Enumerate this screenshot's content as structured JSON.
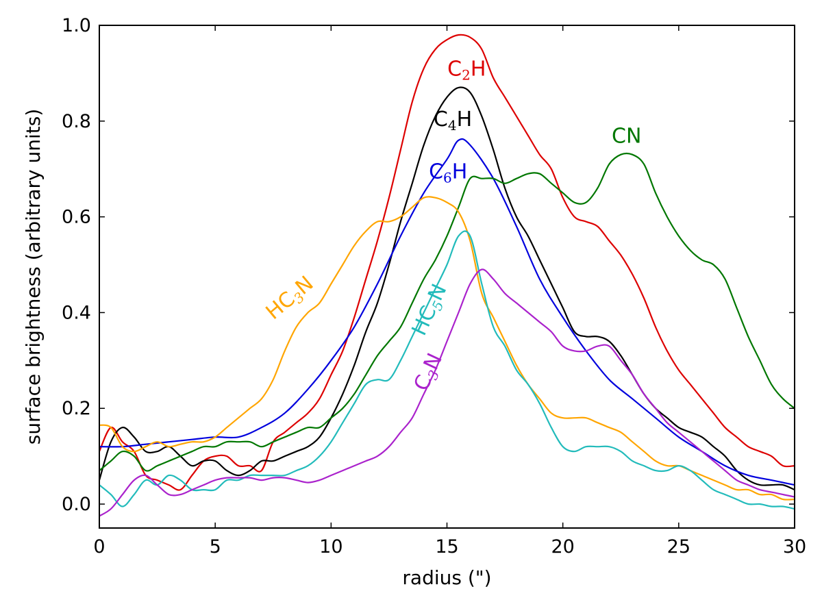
{
  "chart_data": {
    "type": "line",
    "xlabel": "radius (\")",
    "ylabel": "surface brightness (arbitrary units)",
    "xlim": [
      0,
      30
    ],
    "ylim": [
      -0.05,
      1.0
    ],
    "xticks": [
      0,
      5,
      10,
      15,
      20,
      25,
      30
    ],
    "yticks": [
      0.0,
      0.2,
      0.4,
      0.6,
      0.8,
      1.0
    ],
    "xtick_labels": [
      "0",
      "5",
      "10",
      "15",
      "20",
      "25",
      "30"
    ],
    "ytick_labels": [
      "0.0",
      "0.2",
      "0.4",
      "0.6",
      "0.8",
      "1.0"
    ],
    "grid": false,
    "legend": "none",
    "series": [
      {
        "name": "C2H",
        "label_parts": [
          "C",
          "2",
          "H"
        ],
        "color": "#dd0000",
        "x": [
          0,
          0.5,
          1,
          1.5,
          2,
          2.5,
          3,
          3.5,
          4,
          4.5,
          5,
          5.5,
          6,
          6.5,
          7,
          7.5,
          8,
          8.5,
          9,
          9.5,
          10,
          10.5,
          11,
          11.5,
          12,
          12.5,
          13,
          13.5,
          14,
          14.5,
          15,
          15.5,
          16,
          16.5,
          17,
          17.5,
          18,
          18.5,
          19,
          19.5,
          20,
          20.5,
          21,
          21.5,
          22,
          22.5,
          23,
          23.5,
          24,
          24.5,
          25,
          25.5,
          26,
          26.5,
          27,
          27.5,
          28,
          28.5,
          29,
          29.5,
          30
        ],
        "y": [
          0.11,
          0.16,
          0.13,
          0.11,
          0.06,
          0.05,
          0.04,
          0.03,
          0.06,
          0.09,
          0.1,
          0.1,
          0.08,
          0.08,
          0.07,
          0.13,
          0.15,
          0.17,
          0.19,
          0.22,
          0.27,
          0.32,
          0.39,
          0.47,
          0.55,
          0.64,
          0.74,
          0.84,
          0.91,
          0.95,
          0.97,
          0.98,
          0.975,
          0.95,
          0.89,
          0.85,
          0.81,
          0.77,
          0.73,
          0.7,
          0.64,
          0.6,
          0.59,
          0.58,
          0.55,
          0.52,
          0.48,
          0.43,
          0.37,
          0.32,
          0.28,
          0.25,
          0.22,
          0.19,
          0.16,
          0.14,
          0.12,
          0.11,
          0.1,
          0.08,
          0.08
        ]
      },
      {
        "name": "C4H",
        "label_parts": [
          "C",
          "4",
          "H"
        ],
        "color": "#000000",
        "x": [
          0,
          0.5,
          1,
          1.5,
          2,
          2.5,
          3,
          3.5,
          4,
          4.5,
          5,
          5.5,
          6,
          6.5,
          7,
          7.5,
          8,
          8.5,
          9,
          9.5,
          10,
          10.5,
          11,
          11.5,
          12,
          12.5,
          13,
          13.5,
          14,
          14.5,
          15,
          15.5,
          16,
          16.5,
          17,
          17.5,
          18,
          18.5,
          19,
          19.5,
          20,
          20.5,
          21,
          21.5,
          22,
          22.5,
          23,
          23.5,
          24,
          24.5,
          25,
          25.5,
          26,
          26.5,
          27,
          27.5,
          28,
          28.5,
          29,
          29.5,
          30
        ],
        "y": [
          0.05,
          0.13,
          0.16,
          0.14,
          0.11,
          0.11,
          0.12,
          0.1,
          0.08,
          0.09,
          0.09,
          0.07,
          0.06,
          0.07,
          0.09,
          0.09,
          0.1,
          0.11,
          0.12,
          0.14,
          0.18,
          0.23,
          0.29,
          0.36,
          0.42,
          0.5,
          0.59,
          0.67,
          0.75,
          0.81,
          0.85,
          0.87,
          0.86,
          0.81,
          0.74,
          0.66,
          0.6,
          0.56,
          0.51,
          0.46,
          0.41,
          0.36,
          0.35,
          0.35,
          0.34,
          0.31,
          0.27,
          0.23,
          0.2,
          0.18,
          0.16,
          0.15,
          0.14,
          0.12,
          0.1,
          0.07,
          0.05,
          0.04,
          0.04,
          0.04,
          0.03
        ]
      },
      {
        "name": "C6H",
        "label_parts": [
          "C",
          "6",
          "H"
        ],
        "color": "#0000dd",
        "x": [
          0,
          1,
          2,
          3,
          4,
          5,
          6,
          7,
          8,
          9,
          10,
          11,
          12,
          13,
          14,
          15,
          15.5,
          16,
          17,
          18,
          19,
          20,
          21,
          22,
          23,
          24,
          25,
          26,
          27,
          28,
          29,
          30
        ],
        "y": [
          0.12,
          0.12,
          0.125,
          0.13,
          0.135,
          0.14,
          0.14,
          0.16,
          0.19,
          0.24,
          0.3,
          0.37,
          0.46,
          0.56,
          0.65,
          0.72,
          0.76,
          0.75,
          0.68,
          0.58,
          0.47,
          0.39,
          0.32,
          0.26,
          0.22,
          0.18,
          0.14,
          0.11,
          0.08,
          0.06,
          0.05,
          0.04
        ]
      },
      {
        "name": "CN",
        "label_parts": [
          "CN"
        ],
        "color": "#007700",
        "x": [
          0,
          0.5,
          1,
          1.5,
          2,
          2.5,
          3,
          3.5,
          4,
          4.5,
          5,
          5.5,
          6,
          6.5,
          7,
          7.5,
          8,
          8.5,
          9,
          9.5,
          10,
          10.5,
          11,
          11.5,
          12,
          12.5,
          13,
          13.5,
          14,
          14.5,
          15,
          15.5,
          16,
          16.5,
          17,
          17.5,
          18,
          18.5,
          19,
          19.5,
          20,
          20.5,
          21,
          21.5,
          22,
          22.5,
          23,
          23.5,
          24,
          24.5,
          25,
          25.5,
          26,
          26.5,
          27,
          27.5,
          28,
          28.5,
          29,
          29.5,
          30
        ],
        "y": [
          0.07,
          0.09,
          0.11,
          0.1,
          0.07,
          0.08,
          0.09,
          0.1,
          0.11,
          0.12,
          0.12,
          0.13,
          0.13,
          0.13,
          0.12,
          0.13,
          0.14,
          0.15,
          0.16,
          0.16,
          0.18,
          0.2,
          0.23,
          0.27,
          0.31,
          0.34,
          0.37,
          0.42,
          0.47,
          0.51,
          0.56,
          0.62,
          0.68,
          0.68,
          0.68,
          0.67,
          0.68,
          0.69,
          0.69,
          0.67,
          0.65,
          0.63,
          0.63,
          0.66,
          0.71,
          0.73,
          0.73,
          0.71,
          0.65,
          0.6,
          0.56,
          0.53,
          0.51,
          0.5,
          0.47,
          0.41,
          0.35,
          0.3,
          0.25,
          0.22,
          0.2
        ]
      },
      {
        "name": "HC3N",
        "label_parts": [
          "HC",
          "3",
          "N"
        ],
        "color": "#ffa500",
        "x": [
          0,
          0.5,
          1,
          1.5,
          2,
          2.5,
          3,
          3.5,
          4,
          4.5,
          5,
          5.5,
          6,
          6.5,
          7,
          7.5,
          8,
          8.5,
          9,
          9.5,
          10,
          10.5,
          11,
          11.5,
          12,
          12.5,
          13,
          13.5,
          14,
          14.5,
          15,
          15.5,
          16,
          16.5,
          17,
          17.5,
          18,
          18.5,
          19,
          19.5,
          20,
          20.5,
          21,
          21.5,
          22,
          22.5,
          23,
          23.5,
          24,
          24.5,
          25,
          25.5,
          26,
          26.5,
          27,
          27.5,
          28,
          28.5,
          29,
          29.5,
          30
        ],
        "y": [
          0.165,
          0.16,
          0.12,
          0.11,
          0.12,
          0.13,
          0.12,
          0.125,
          0.13,
          0.13,
          0.14,
          0.16,
          0.18,
          0.2,
          0.22,
          0.26,
          0.32,
          0.37,
          0.4,
          0.42,
          0.46,
          0.5,
          0.54,
          0.57,
          0.59,
          0.59,
          0.6,
          0.62,
          0.64,
          0.64,
          0.63,
          0.61,
          0.55,
          0.44,
          0.39,
          0.34,
          0.29,
          0.25,
          0.22,
          0.19,
          0.18,
          0.18,
          0.18,
          0.17,
          0.16,
          0.15,
          0.13,
          0.11,
          0.09,
          0.08,
          0.08,
          0.07,
          0.06,
          0.05,
          0.04,
          0.03,
          0.03,
          0.02,
          0.02,
          0.01,
          0.01
        ]
      },
      {
        "name": "HC5N",
        "label_parts": [
          "HC",
          "5",
          "N"
        ],
        "color": "#22bbbb",
        "x": [
          0,
          0.5,
          1,
          1.5,
          2,
          2.5,
          3,
          3.5,
          4,
          4.5,
          5,
          5.5,
          6,
          6.5,
          7,
          7.5,
          8,
          8.5,
          9,
          9.5,
          10,
          10.5,
          11,
          11.5,
          12,
          12.5,
          13,
          13.5,
          14,
          14.5,
          15,
          15.5,
          16,
          16.5,
          17,
          17.5,
          18,
          18.5,
          19,
          19.5,
          20,
          20.5,
          21,
          21.5,
          22,
          22.5,
          23,
          23.5,
          24,
          24.5,
          25,
          25.5,
          26,
          26.5,
          27,
          27.5,
          28,
          28.5,
          29,
          29.5,
          30
        ],
        "y": [
          0.04,
          0.02,
          -0.005,
          0.02,
          0.05,
          0.04,
          0.06,
          0.05,
          0.03,
          0.03,
          0.03,
          0.05,
          0.05,
          0.06,
          0.06,
          0.06,
          0.06,
          0.07,
          0.08,
          0.1,
          0.13,
          0.17,
          0.21,
          0.25,
          0.26,
          0.26,
          0.3,
          0.35,
          0.4,
          0.45,
          0.5,
          0.56,
          0.56,
          0.46,
          0.37,
          0.33,
          0.28,
          0.25,
          0.21,
          0.16,
          0.12,
          0.11,
          0.12,
          0.12,
          0.12,
          0.11,
          0.09,
          0.08,
          0.07,
          0.07,
          0.08,
          0.07,
          0.05,
          0.03,
          0.02,
          0.01,
          0.0,
          0.0,
          -0.005,
          -0.005,
          -0.01
        ]
      },
      {
        "name": "C3N",
        "label_parts": [
          "C",
          "3",
          "N"
        ],
        "color": "#aa22cc",
        "x": [
          0,
          0.5,
          1,
          1.5,
          2,
          2.5,
          3,
          3.5,
          4,
          4.5,
          5,
          5.5,
          6,
          6.5,
          7,
          7.5,
          8,
          8.5,
          9,
          9.5,
          10,
          10.5,
          11,
          11.5,
          12,
          12.5,
          13,
          13.5,
          14,
          14.5,
          15,
          15.5,
          16,
          16.5,
          17,
          17.5,
          18,
          18.5,
          19,
          19.5,
          20,
          20.5,
          21,
          21.5,
          22,
          22.5,
          23,
          23.5,
          24,
          24.5,
          25,
          25.5,
          26,
          26.5,
          27,
          27.5,
          28,
          28.5,
          29,
          29.5,
          30
        ],
        "y": [
          -0.025,
          -0.01,
          0.02,
          0.05,
          0.06,
          0.04,
          0.02,
          0.02,
          0.03,
          0.04,
          0.05,
          0.055,
          0.055,
          0.055,
          0.05,
          0.055,
          0.055,
          0.05,
          0.045,
          0.05,
          0.06,
          0.07,
          0.08,
          0.09,
          0.1,
          0.12,
          0.15,
          0.18,
          0.23,
          0.28,
          0.34,
          0.4,
          0.46,
          0.49,
          0.47,
          0.44,
          0.42,
          0.4,
          0.38,
          0.36,
          0.33,
          0.32,
          0.32,
          0.33,
          0.33,
          0.3,
          0.27,
          0.23,
          0.2,
          0.17,
          0.15,
          0.13,
          0.11,
          0.09,
          0.07,
          0.05,
          0.04,
          0.03,
          0.025,
          0.02,
          0.015
        ]
      }
    ],
    "annotations": [
      {
        "series": "C2H",
        "x": 15.85,
        "y": 0.895,
        "rotate": 0
      },
      {
        "series": "C4H",
        "x": 15.25,
        "y": 0.79,
        "rotate": 0
      },
      {
        "series": "C6H",
        "x": 15.05,
        "y": 0.68,
        "rotate": 0
      },
      {
        "series": "CN",
        "x": 22.75,
        "y": 0.755,
        "rotate": 0
      },
      {
        "series": "HC3N",
        "x": 8.4,
        "y": 0.42,
        "rotate": -40
      },
      {
        "series": "HC5N",
        "x": 14.5,
        "y": 0.4,
        "rotate": -65
      },
      {
        "series": "C3N",
        "x": 14.45,
        "y": 0.27,
        "rotate": -65
      }
    ]
  }
}
